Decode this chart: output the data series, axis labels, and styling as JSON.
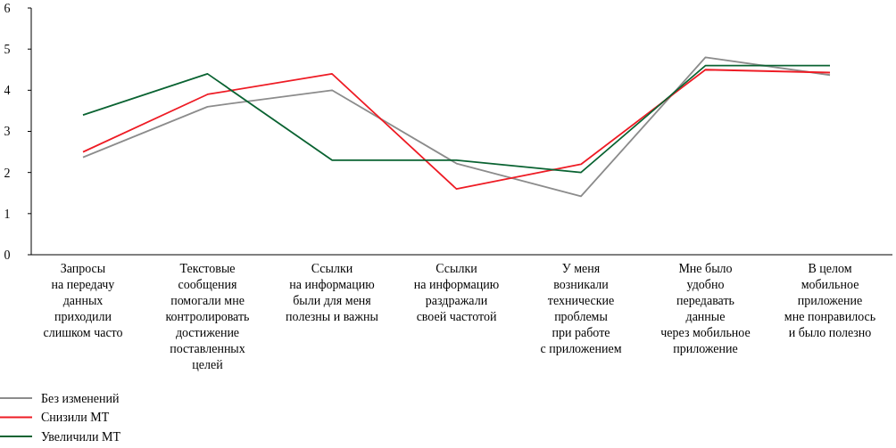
{
  "chart_data": {
    "type": "line",
    "categories": [
      "Запросы\nна передачу\nданных\nприходили\nслишком часто",
      "Текстовые\nсообщения\nпомогали мне\nконтролировать\nдостижение\nпоставленных\nцелей",
      "Ссылки\nна информацию\nбыли для меня\nполезны и важны",
      "Ссылки\nна информацию\nраздражали\nсвоей частотой",
      "У меня\nвозникали\nтехнические\nпроблемы\nпри работе\nс приложением",
      "Мне было\nудобно\nпередавать\nданные\nчерез мобильное\nприложение",
      "В целом\nмобильное\nприложение\nмне понравилось\nи было полезно"
    ],
    "series": [
      {
        "name": "Без изменений",
        "color": "#8c8c8c",
        "values": [
          2.37,
          3.6,
          4.0,
          2.22,
          1.42,
          4.8,
          4.37
        ]
      },
      {
        "name": "Снизили МТ",
        "color": "#ee1c25",
        "values": [
          2.5,
          3.9,
          4.4,
          1.6,
          2.2,
          4.5,
          4.43
        ]
      },
      {
        "name": "Увеличили МТ",
        "color": "#0a6332",
        "values": [
          3.4,
          4.4,
          2.3,
          2.3,
          2.0,
          4.6,
          4.6
        ]
      }
    ],
    "ylim": [
      0,
      6
    ],
    "yticks": [
      0,
      1,
      2,
      3,
      4,
      5,
      6
    ],
    "grid": false,
    "legend": "bottom left",
    "marker": "none",
    "line_style": "solid"
  }
}
